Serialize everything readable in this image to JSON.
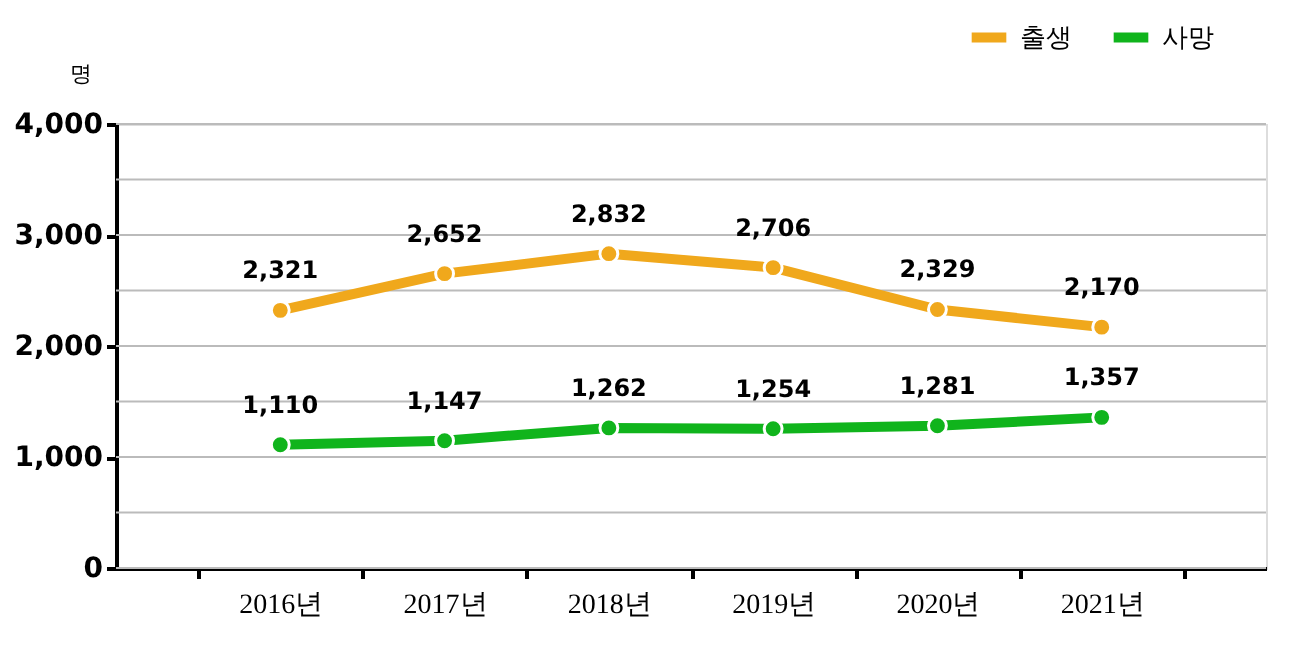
{
  "chart_data": {
    "type": "line",
    "ylabel": "명",
    "categories": [
      "2016년",
      "2017년",
      "2018년",
      "2019년",
      "2020년",
      "2021년"
    ],
    "series": [
      {
        "name": "출생",
        "color": "#f0a81c",
        "values": [
          2321,
          2652,
          2832,
          2706,
          2329,
          2170
        ],
        "value_labels": [
          "2,321",
          "2,652",
          "2,832",
          "2,706",
          "2,329",
          "2,170"
        ]
      },
      {
        "name": "사망",
        "color": "#10b41c",
        "values": [
          1110,
          1147,
          1262,
          1254,
          1281,
          1357
        ],
        "value_labels": [
          "1,110",
          "1,147",
          "1,262",
          "1,254",
          "1,281",
          "1,357"
        ]
      }
    ],
    "ylim": [
      0,
      4000
    ],
    "yticks": [
      0,
      {
        "value": 500,
        "label": null
      },
      {
        "value": 1000,
        "label": "1,000"
      },
      {
        "value": 1500,
        "label": null
      },
      {
        "value": 2000,
        "label": "2,000"
      },
      {
        "value": 2500,
        "label": null
      },
      {
        "value": 3000,
        "label": "3,000"
      },
      {
        "value": 3500,
        "label": null
      },
      {
        "value": 4000,
        "label": "4,000"
      }
    ],
    "grid": "y",
    "legend": "top right",
    "marker": "circle",
    "line_style": "solid"
  }
}
